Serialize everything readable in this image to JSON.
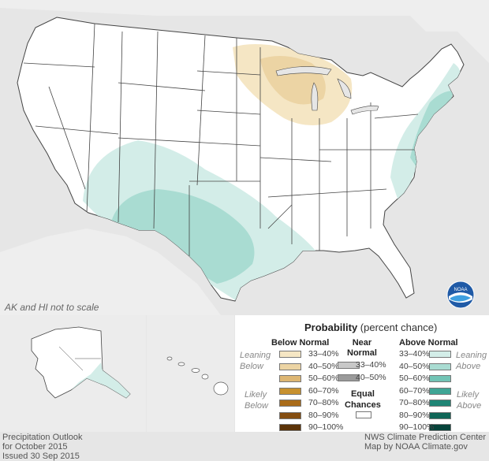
{
  "map_note": "AK and HI not to scale",
  "legend": {
    "title_bold": "Probability",
    "title_rest": " (percent chance)",
    "below_normal": {
      "header": "Below Normal",
      "leaning_label": [
        "Leaning",
        "Below"
      ],
      "likely_label": [
        "Likely",
        "Below"
      ],
      "items": [
        {
          "label": "33–40%",
          "color": "#f5e6c4"
        },
        {
          "label": "40–50%",
          "color": "#ecd4a4"
        },
        {
          "label": "50–60%",
          "color": "#ddb673"
        },
        {
          "label": "60–70%",
          "color": "#c7912f"
        },
        {
          "label": "70–80%",
          "color": "#a96b19"
        },
        {
          "label": "80–90%",
          "color": "#844d10"
        },
        {
          "label": "90–100%",
          "color": "#5b3308"
        }
      ]
    },
    "near_normal": {
      "header": [
        "Near",
        "Normal"
      ],
      "items": [
        {
          "label": "33–40%",
          "color": "#c8c8c8"
        },
        {
          "label": "40–50%",
          "color": "#9a9a9a"
        }
      ]
    },
    "equal_chances": {
      "label": [
        "Equal",
        "Chances"
      ],
      "color": "#ffffff"
    },
    "above_normal": {
      "header": "Above Normal",
      "leaning_label": [
        "Leaning",
        "Above"
      ],
      "likely_label": [
        "Likely",
        "Above"
      ],
      "items": [
        {
          "label": "33–40%",
          "color": "#d3ede8"
        },
        {
          "label": "40–50%",
          "color": "#a9dcd2"
        },
        {
          "label": "50–60%",
          "color": "#72c4b5"
        },
        {
          "label": "60–70%",
          "color": "#3fa595"
        },
        {
          "label": "70–80%",
          "color": "#1f8575"
        },
        {
          "label": "80–90%",
          "color": "#0f6557"
        },
        {
          "label": "90–100%",
          "color": "#06433a"
        }
      ]
    }
  },
  "footer_left": [
    "Precipitation Outlook",
    "for October 2015",
    "Issued 30 Sep 2015"
  ],
  "footer_right": [
    "NWS Climate Prediction Center",
    "Map by NOAA Climate.gov"
  ],
  "logo_text": "NOAA",
  "colors": {
    "background": "#e6e6e6",
    "land": "#ffffff",
    "water": "#ececec",
    "state_border": "#444444"
  }
}
